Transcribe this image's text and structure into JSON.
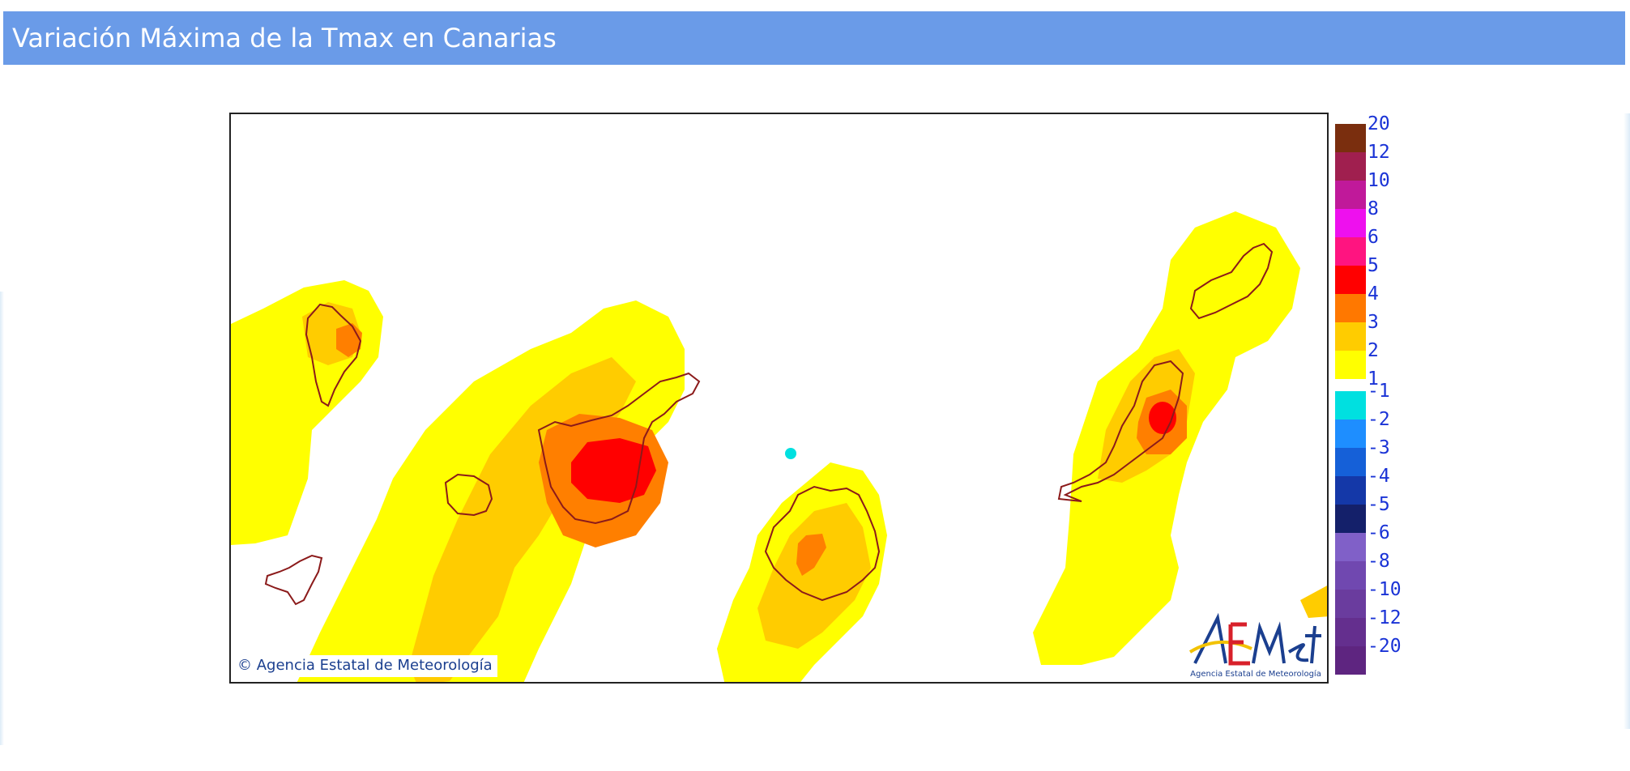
{
  "header": {
    "title": "Variación Máxima de la Tmax en Canarias"
  },
  "map": {
    "copyright": "© Agencia Estatal de Meteorología",
    "logo_text": "AEMet",
    "logo_subtitle": "Agencia Estatal de Meteorología",
    "colors": {
      "class_1_2": "#ffff00",
      "class_2_3": "#ffd000",
      "class_3_4": "#ff7f00",
      "class_4_5": "#ff0000",
      "cold_minus_1": "#00e0e0",
      "island_outline": "#8b1a1a"
    },
    "islands": [
      "La Palma",
      "La Gomera",
      "El Hierro",
      "Tenerife",
      "Gran Canaria",
      "Fuerteventura",
      "Lanzarote"
    ]
  },
  "legend": {
    "items": [
      {
        "label": "20",
        "color": "#7a2e0e"
      },
      {
        "label": "12",
        "color": "#a01f4f"
      },
      {
        "label": "10",
        "color": "#c0199a"
      },
      {
        "label": "8",
        "color": "#ee10ee"
      },
      {
        "label": "6",
        "color": "#ff1480"
      },
      {
        "label": "5",
        "color": "#ff0000"
      },
      {
        "label": "4",
        "color": "#ff7800"
      },
      {
        "label": "3",
        "color": "#ffcc00"
      },
      {
        "label": "2",
        "color": "#ffff00"
      },
      {
        "label": "1",
        "color": "#ffffff"
      },
      {
        "label": "-1",
        "color": "#00e0e0"
      },
      {
        "label": "-2",
        "color": "#1e8eff"
      },
      {
        "label": "-3",
        "color": "#1560d8"
      },
      {
        "label": "-4",
        "color": "#1438a8"
      },
      {
        "label": "-5",
        "color": "#14206a"
      },
      {
        "label": "-6",
        "color": "#8060c8"
      },
      {
        "label": "-8",
        "color": "#7048b0"
      },
      {
        "label": "-10",
        "color": "#6a3c9e"
      },
      {
        "label": "-12",
        "color": "#642f8e"
      },
      {
        "label": "-20",
        "color": "#5e2580"
      }
    ]
  }
}
